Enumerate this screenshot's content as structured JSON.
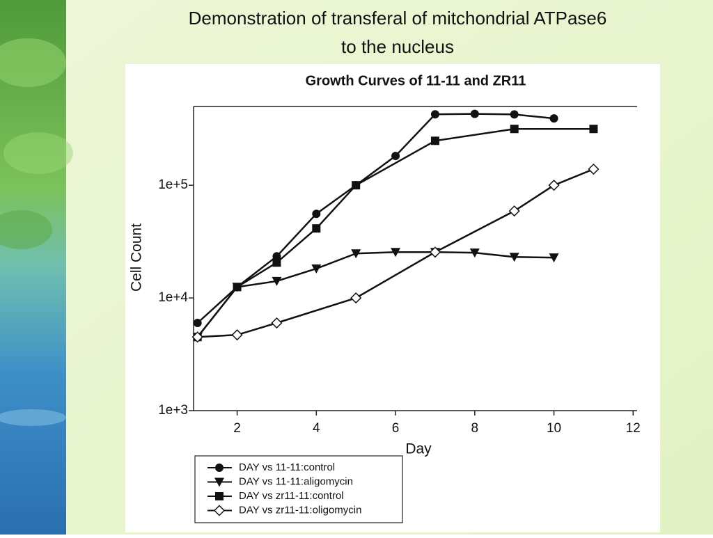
{
  "slide": {
    "title_lines": [
      "Demonstration of transferal of mitchondrial ATPase6",
      "to the nucleus"
    ]
  },
  "chart_data": {
    "type": "line",
    "title": "Growth Curves of 11-11 and ZR11",
    "x_label": "Day",
    "y_label": "Cell Count",
    "yscale": "log",
    "xlim": [
      0.9,
      12.1
    ],
    "ylim": [
      1000,
      500000
    ],
    "xticks": [
      2,
      4,
      6,
      8,
      10,
      12
    ],
    "yticks": [
      {
        "value": 1000,
        "label": "1e+3"
      },
      {
        "value": 10000,
        "label": "1e+4"
      },
      {
        "value": 100000,
        "label": "1e+5"
      }
    ],
    "series": [
      {
        "name": "DAY vs 11-11:control",
        "color": "#111111",
        "marker": "circle",
        "x": [
          1,
          2,
          3,
          4,
          5,
          6,
          7,
          8,
          9,
          10
        ],
        "values": [
          6000,
          12500,
          23400,
          55800,
          100000,
          182000,
          426000,
          430000,
          425000,
          392000
        ]
      },
      {
        "name": "DAY vs 11-11:aligomycin",
        "color": "#111111",
        "marker": "triangle-down",
        "x": [
          1,
          2,
          3,
          4,
          5,
          6,
          7,
          8,
          9,
          10
        ],
        "values": [
          4500,
          12500,
          14100,
          18200,
          24800,
          25500,
          25500,
          25200,
          23100,
          22800
        ]
      },
      {
        "name": "DAY vs zr11-11:control",
        "color": "#111111",
        "marker": "square",
        "x": [
          1,
          2,
          3,
          4,
          5,
          7,
          9,
          11
        ],
        "values": [
          4500,
          12500,
          20600,
          41400,
          100000,
          248000,
          316000,
          316000
        ]
      },
      {
        "name": "DAY vs zr11-11:oligomycin",
        "color": "#111111",
        "marker": "diamond-open",
        "x": [
          1,
          2,
          3,
          5,
          7,
          9,
          10,
          11
        ],
        "values": [
          4500,
          4700,
          6000,
          10000,
          25500,
          59100,
          100000,
          139000
        ]
      }
    ]
  }
}
